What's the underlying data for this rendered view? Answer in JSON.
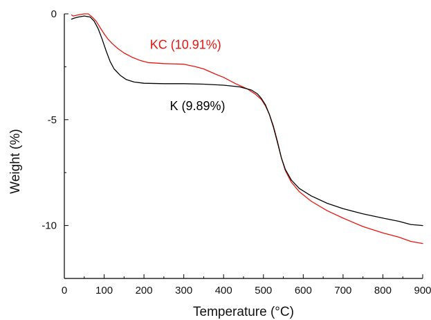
{
  "chart_data": {
    "type": "line",
    "xlabel": "Temperature (°C)",
    "ylabel": "Weight (%)",
    "xlim": [
      0,
      900
    ],
    "ylim": [
      -12.5,
      0
    ],
    "xticks": [
      0,
      100,
      200,
      300,
      400,
      500,
      600,
      700,
      800,
      900
    ],
    "yticks": [
      0,
      -5,
      -10
    ],
    "grid": false,
    "annotations": [
      {
        "text": "KC (10.91%)",
        "color": "#e8140f",
        "x": 215,
        "y": -1.65
      },
      {
        "text": "K (9.89%)",
        "color": "#000000",
        "x": 265,
        "y": -4.55
      }
    ],
    "series": [
      {
        "color": "#e8140f",
        "points": [
          [
            18,
            -0.05
          ],
          [
            22,
            -0.1
          ],
          [
            35,
            -0.05
          ],
          [
            50,
            0.0
          ],
          [
            60,
            0.0
          ],
          [
            70,
            -0.15
          ],
          [
            80,
            -0.35
          ],
          [
            90,
            -0.65
          ],
          [
            100,
            -0.95
          ],
          [
            110,
            -1.2
          ],
          [
            120,
            -1.4
          ],
          [
            135,
            -1.65
          ],
          [
            150,
            -1.85
          ],
          [
            170,
            -2.05
          ],
          [
            190,
            -2.2
          ],
          [
            210,
            -2.3
          ],
          [
            250,
            -2.35
          ],
          [
            300,
            -2.38
          ],
          [
            330,
            -2.5
          ],
          [
            350,
            -2.6
          ],
          [
            380,
            -2.85
          ],
          [
            400,
            -3.0
          ],
          [
            430,
            -3.3
          ],
          [
            460,
            -3.55
          ],
          [
            480,
            -3.8
          ],
          [
            495,
            -4.05
          ],
          [
            505,
            -4.35
          ],
          [
            515,
            -4.75
          ],
          [
            525,
            -5.3
          ],
          [
            535,
            -6.0
          ],
          [
            545,
            -6.8
          ],
          [
            555,
            -7.4
          ],
          [
            570,
            -7.95
          ],
          [
            590,
            -8.4
          ],
          [
            620,
            -8.85
          ],
          [
            660,
            -9.3
          ],
          [
            700,
            -9.65
          ],
          [
            750,
            -10.05
          ],
          [
            800,
            -10.35
          ],
          [
            840,
            -10.55
          ],
          [
            870,
            -10.75
          ],
          [
            900,
            -10.85
          ]
        ]
      },
      {
        "color": "#000000",
        "points": [
          [
            18,
            -0.25
          ],
          [
            25,
            -0.2
          ],
          [
            35,
            -0.15
          ],
          [
            50,
            -0.1
          ],
          [
            65,
            -0.15
          ],
          [
            75,
            -0.35
          ],
          [
            85,
            -0.7
          ],
          [
            95,
            -1.2
          ],
          [
            105,
            -1.75
          ],
          [
            115,
            -2.25
          ],
          [
            125,
            -2.6
          ],
          [
            140,
            -2.9
          ],
          [
            155,
            -3.1
          ],
          [
            175,
            -3.22
          ],
          [
            200,
            -3.28
          ],
          [
            250,
            -3.3
          ],
          [
            300,
            -3.3
          ],
          [
            350,
            -3.32
          ],
          [
            400,
            -3.37
          ],
          [
            440,
            -3.45
          ],
          [
            470,
            -3.6
          ],
          [
            485,
            -3.78
          ],
          [
            495,
            -4.0
          ],
          [
            505,
            -4.3
          ],
          [
            515,
            -4.75
          ],
          [
            525,
            -5.35
          ],
          [
            535,
            -6.05
          ],
          [
            545,
            -6.8
          ],
          [
            555,
            -7.35
          ],
          [
            570,
            -7.85
          ],
          [
            590,
            -8.25
          ],
          [
            620,
            -8.6
          ],
          [
            660,
            -8.95
          ],
          [
            700,
            -9.2
          ],
          [
            750,
            -9.45
          ],
          [
            800,
            -9.65
          ],
          [
            840,
            -9.8
          ],
          [
            870,
            -9.95
          ],
          [
            900,
            -10.0
          ]
        ]
      }
    ]
  }
}
